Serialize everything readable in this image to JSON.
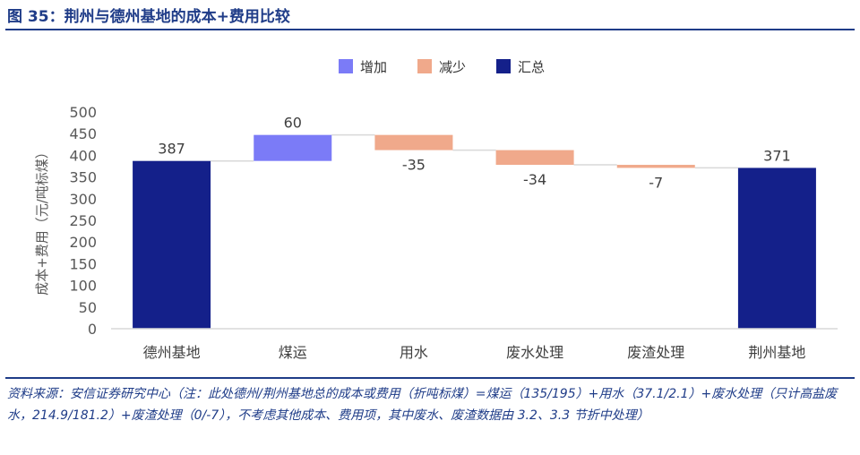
{
  "figure": {
    "title": "图 35：荆州与德州基地的成本+费用比较",
    "source": "资料来源：安信证券研究中心（注：此处德州/荆州基地总的成本或费用（折吨标煤）=煤运（135/195）+用水（37.1/2.1）+废水处理（只计高盐废水，214.9/181.2）+废渣处理（0/-7），不考虑其他成本、费用项，其中废水、废渣数据由 3.2、3.3 节折中处理）"
  },
  "colors": {
    "increase": "#7b7bf7",
    "decrease": "#f0a98b",
    "total": "#14208a",
    "title": "#1f3c88",
    "connector": "#d9d9d9"
  },
  "chart_data": {
    "type": "bar",
    "subtype": "waterfall",
    "title": "",
    "xlabel": "",
    "ylabel": "成本+费用（元/吨标煤）",
    "ylim": [
      0,
      500
    ],
    "yticks": [
      0,
      50,
      100,
      150,
      200,
      250,
      300,
      350,
      400,
      450,
      500
    ],
    "grid": false,
    "legend": {
      "position": "top",
      "entries": [
        {
          "name": "增加",
          "color_key": "increase"
        },
        {
          "name": "减少",
          "color_key": "decrease"
        },
        {
          "name": "汇总",
          "color_key": "total"
        }
      ]
    },
    "categories": [
      "德州基地",
      "煤运",
      "用水",
      "废水处理",
      "废渣处理",
      "荆州基地"
    ],
    "steps": [
      {
        "category": "德州基地",
        "kind": "total",
        "value": 387,
        "label": "387"
      },
      {
        "category": "煤运",
        "kind": "increase",
        "value": 60,
        "label": "60"
      },
      {
        "category": "用水",
        "kind": "decrease",
        "value": -35,
        "label": "-35"
      },
      {
        "category": "废水处理",
        "kind": "decrease",
        "value": -34,
        "label": "-34"
      },
      {
        "category": "废渣处理",
        "kind": "decrease",
        "value": -7,
        "label": "-7"
      },
      {
        "category": "荆州基地",
        "kind": "total",
        "value": 371,
        "label": "371"
      }
    ]
  }
}
